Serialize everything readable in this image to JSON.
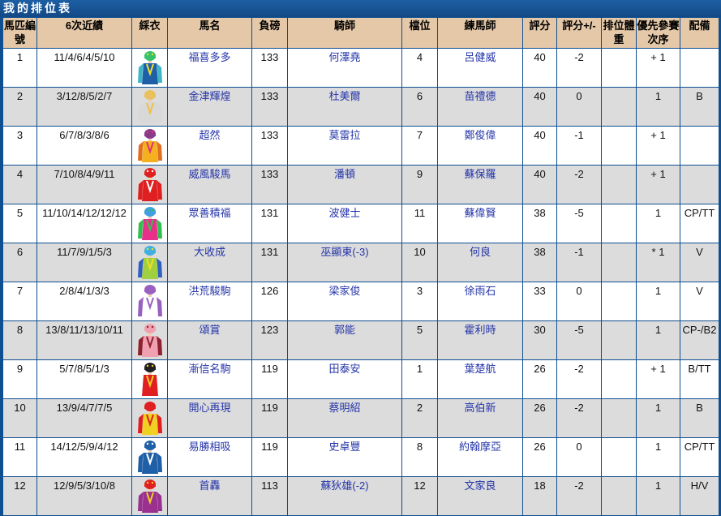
{
  "title": "我的排位表",
  "headers": [
    "馬匹編號",
    "6次近績",
    "綵衣",
    "馬名",
    "負磅",
    "騎師",
    "檔位",
    "練馬師",
    "評分",
    "評分+/-",
    "排位體重",
    "優先參賽次序",
    "配備"
  ],
  "rows": [
    {
      "no": "1",
      "form": "11/4/6/4/5/10",
      "horse": "福喜多多",
      "wt": "133",
      "jockey": "何澤堯",
      "draw": "4",
      "trainer": "呂健威",
      "rating": "40",
      "rchg": "-2",
      "bw": "",
      "pri": "+ 1",
      "gear": "",
      "silk": {
        "body": "#1f5fa8",
        "sleeve": "#3fb5c8",
        "cap": "#36c26a",
        "accent": "#f2e02a"
      }
    },
    {
      "no": "2",
      "form": "3/12/8/5/2/7",
      "horse": "金津輝煌",
      "wt": "133",
      "jockey": "杜美爾",
      "draw": "6",
      "trainer": "苗禮德",
      "rating": "40",
      "rchg": "0",
      "bw": "",
      "pri": "1",
      "gear": "B",
      "silk": {
        "body": "#d8d8d8",
        "sleeve": "#d8d8d8",
        "cap": "#e8c060",
        "accent": "#f0c040"
      }
    },
    {
      "no": "3",
      "form": "6/7/8/3/8/6",
      "horse": "超然",
      "wt": "133",
      "jockey": "莫雷拉",
      "draw": "7",
      "trainer": "鄭俊偉",
      "rating": "40",
      "rchg": "-1",
      "bw": "",
      "pri": "+ 1",
      "gear": "",
      "silk": {
        "body": "#f5b020",
        "sleeve": "#e07020",
        "cap": "#8a3a8a",
        "accent": "#e0307a"
      }
    },
    {
      "no": "4",
      "form": "7/10/8/4/9/11",
      "horse": "威風駿馬",
      "wt": "133",
      "jockey": "潘頓",
      "draw": "9",
      "trainer": "蘇保羅",
      "rating": "40",
      "rchg": "-2",
      "bw": "",
      "pri": "+ 1",
      "gear": "",
      "silk": {
        "body": "#e02020",
        "sleeve": "#e02020",
        "cap": "#e02020",
        "accent": "#ffffff"
      }
    },
    {
      "no": "5",
      "form": "11/10/14/12/12/12",
      "horse": "眾善積福",
      "wt": "131",
      "jockey": "波健士",
      "draw": "11",
      "trainer": "蘇偉賢",
      "rating": "38",
      "rchg": "-5",
      "bw": "",
      "pri": "1",
      "gear": "CP/TT",
      "silk": {
        "body": "#e8308a",
        "sleeve": "#30c050",
        "cap": "#40a0e0",
        "accent": "#30c050"
      }
    },
    {
      "no": "6",
      "form": "11/7/9/1/5/3",
      "horse": "大收成",
      "wt": "131",
      "jockey": "巫顯東(-3)",
      "draw": "10",
      "trainer": "何良",
      "rating": "38",
      "rchg": "-1",
      "bw": "",
      "pri": "* 1",
      "gear": "V",
      "silk": {
        "body": "#a0d040",
        "sleeve": "#3060c0",
        "cap": "#40b0e0",
        "accent": "#f0e020"
      }
    },
    {
      "no": "7",
      "form": "2/8/4/1/3/3",
      "horse": "洪荒駿駒",
      "wt": "126",
      "jockey": "梁家俊",
      "draw": "3",
      "trainer": "徐雨石",
      "rating": "33",
      "rchg": "0",
      "bw": "",
      "pri": "1",
      "gear": "V",
      "silk": {
        "body": "#ffffff",
        "sleeve": "#9a60c0",
        "cap": "#9a60c0",
        "accent": "#9a60c0"
      }
    },
    {
      "no": "8",
      "form": "13/8/11/13/10/11",
      "horse": "頌賞",
      "wt": "123",
      "jockey": "郭能",
      "draw": "5",
      "trainer": "霍利時",
      "rating": "30",
      "rchg": "-5",
      "bw": "",
      "pri": "1",
      "gear": "CP-/B2",
      "silk": {
        "body": "#f0a0b0",
        "sleeve": "#902030",
        "cap": "#f0a0b0",
        "accent": "#902030"
      }
    },
    {
      "no": "9",
      "form": "5/7/8/5/1/3",
      "horse": "漸信名駒",
      "wt": "119",
      "jockey": "田泰安",
      "draw": "1",
      "trainer": "葉楚航",
      "rating": "26",
      "rchg": "-2",
      "bw": "",
      "pri": "+ 1",
      "gear": "B/TT",
      "silk": {
        "body": "#e02020",
        "sleeve": "#ffffff",
        "cap": "#202020",
        "accent": "#f0d020"
      }
    },
    {
      "no": "10",
      "form": "13/9/4/7/7/5",
      "horse": "開心再現",
      "wt": "119",
      "jockey": "蔡明紹",
      "draw": "2",
      "trainer": "高伯新",
      "rating": "26",
      "rchg": "-2",
      "bw": "",
      "pri": "1",
      "gear": "B",
      "silk": {
        "body": "#f0d020",
        "sleeve": "#e02020",
        "cap": "#e02020",
        "accent": "#e02020"
      }
    },
    {
      "no": "11",
      "form": "14/12/5/9/4/12",
      "horse": "易勝相吸",
      "wt": "119",
      "jockey": "史卓豐",
      "draw": "8",
      "trainer": "約翰摩亞",
      "rating": "26",
      "rchg": "0",
      "bw": "",
      "pri": "1",
      "gear": "CP/TT",
      "silk": {
        "body": "#1f5fa8",
        "sleeve": "#1f5fa8",
        "cap": "#1f5fa8",
        "accent": "#ffffff"
      }
    },
    {
      "no": "12",
      "form": "12/9/5/3/10/8",
      "horse": "首轟",
      "wt": "113",
      "jockey": "蘇狄雄(-2)",
      "draw": "12",
      "trainer": "文家良",
      "rating": "18",
      "rchg": "-2",
      "bw": "",
      "pri": "1",
      "gear": "H/V",
      "silk": {
        "body": "#9a3090",
        "sleeve": "#9a3090",
        "cap": "#e02020",
        "accent": "#f0d020"
      }
    }
  ]
}
